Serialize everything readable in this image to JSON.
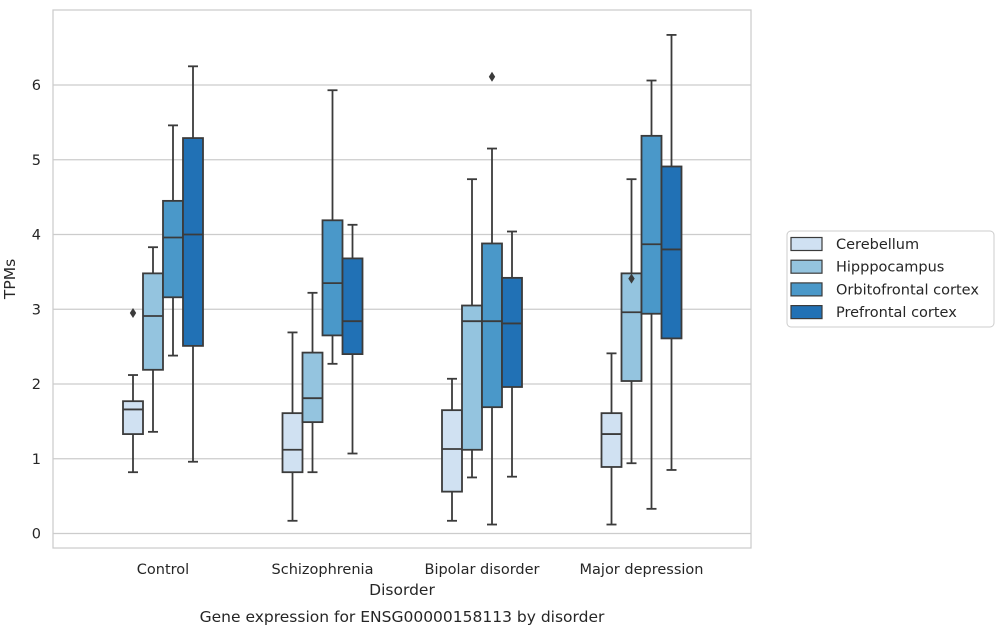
{
  "chart_data": {
    "type": "box",
    "title": "Gene expression for ENSG00000158113 by disorder",
    "xlabel": "Disorder",
    "ylabel": "TPMs",
    "categories": [
      "Control",
      "Schizophrenia",
      "Bipolar disorder",
      "Major depression"
    ],
    "ylim": [
      -0.2,
      7.0
    ],
    "yticks": [
      "0",
      "1",
      "2",
      "3",
      "4",
      "5",
      "6"
    ],
    "grid": true,
    "legend_position": "right",
    "series": [
      {
        "name": "Cerebellum",
        "color": "#d0e1f2",
        "boxes": [
          {
            "whislo": 0.82,
            "q1": 1.33,
            "med": 1.66,
            "q3": 1.77,
            "whishi": 2.12,
            "fliers": [
              2.95
            ]
          },
          {
            "whislo": 0.17,
            "q1": 0.82,
            "med": 1.12,
            "q3": 1.61,
            "whishi": 2.69,
            "fliers": []
          },
          {
            "whislo": 0.17,
            "q1": 0.56,
            "med": 1.13,
            "q3": 1.65,
            "whishi": 2.07,
            "fliers": []
          },
          {
            "whislo": 0.12,
            "q1": 0.89,
            "med": 1.33,
            "q3": 1.61,
            "whishi": 2.41,
            "fliers": []
          }
        ]
      },
      {
        "name": "Hipppocampus",
        "color": "#94c4df",
        "boxes": [
          {
            "whislo": 1.36,
            "q1": 2.19,
            "med": 2.91,
            "q3": 3.48,
            "whishi": 3.83,
            "fliers": []
          },
          {
            "whislo": 0.82,
            "q1": 1.49,
            "med": 1.81,
            "q3": 2.42,
            "whishi": 3.22,
            "fliers": []
          },
          {
            "whislo": 0.75,
            "q1": 1.12,
            "med": 2.84,
            "q3": 3.05,
            "whishi": 4.74,
            "fliers": []
          },
          {
            "whislo": 0.94,
            "q1": 2.04,
            "med": 2.96,
            "q3": 3.48,
            "whishi": 4.74,
            "fliers": [
              3.41
            ]
          }
        ]
      },
      {
        "name": "Orbitofrontal cortex",
        "color": "#4a98c9",
        "boxes": [
          {
            "whislo": 2.38,
            "q1": 3.16,
            "med": 3.96,
            "q3": 4.45,
            "whishi": 5.46,
            "fliers": []
          },
          {
            "whislo": 2.27,
            "q1": 2.65,
            "med": 3.35,
            "q3": 4.19,
            "whishi": 5.93,
            "fliers": []
          },
          {
            "whislo": 0.12,
            "q1": 1.69,
            "med": 2.84,
            "q3": 3.88,
            "whishi": 5.15,
            "fliers": [
              6.11
            ]
          },
          {
            "whislo": 0.33,
            "q1": 2.94,
            "med": 3.87,
            "q3": 5.32,
            "whishi": 6.06,
            "fliers": []
          }
        ]
      },
      {
        "name": "Prefrontal cortex",
        "color": "#2171b5",
        "boxes": [
          {
            "whislo": 0.96,
            "q1": 2.51,
            "med": 4.0,
            "q3": 5.29,
            "whishi": 6.25,
            "fliers": []
          },
          {
            "whislo": 1.07,
            "q1": 2.4,
            "med": 2.84,
            "q3": 3.68,
            "whishi": 4.13,
            "fliers": []
          },
          {
            "whislo": 0.76,
            "q1": 1.96,
            "med": 2.81,
            "q3": 3.42,
            "whishi": 4.04,
            "fliers": []
          },
          {
            "whislo": 0.85,
            "q1": 2.61,
            "med": 3.8,
            "q3": 4.91,
            "whishi": 6.67,
            "fliers": []
          }
        ]
      }
    ]
  }
}
